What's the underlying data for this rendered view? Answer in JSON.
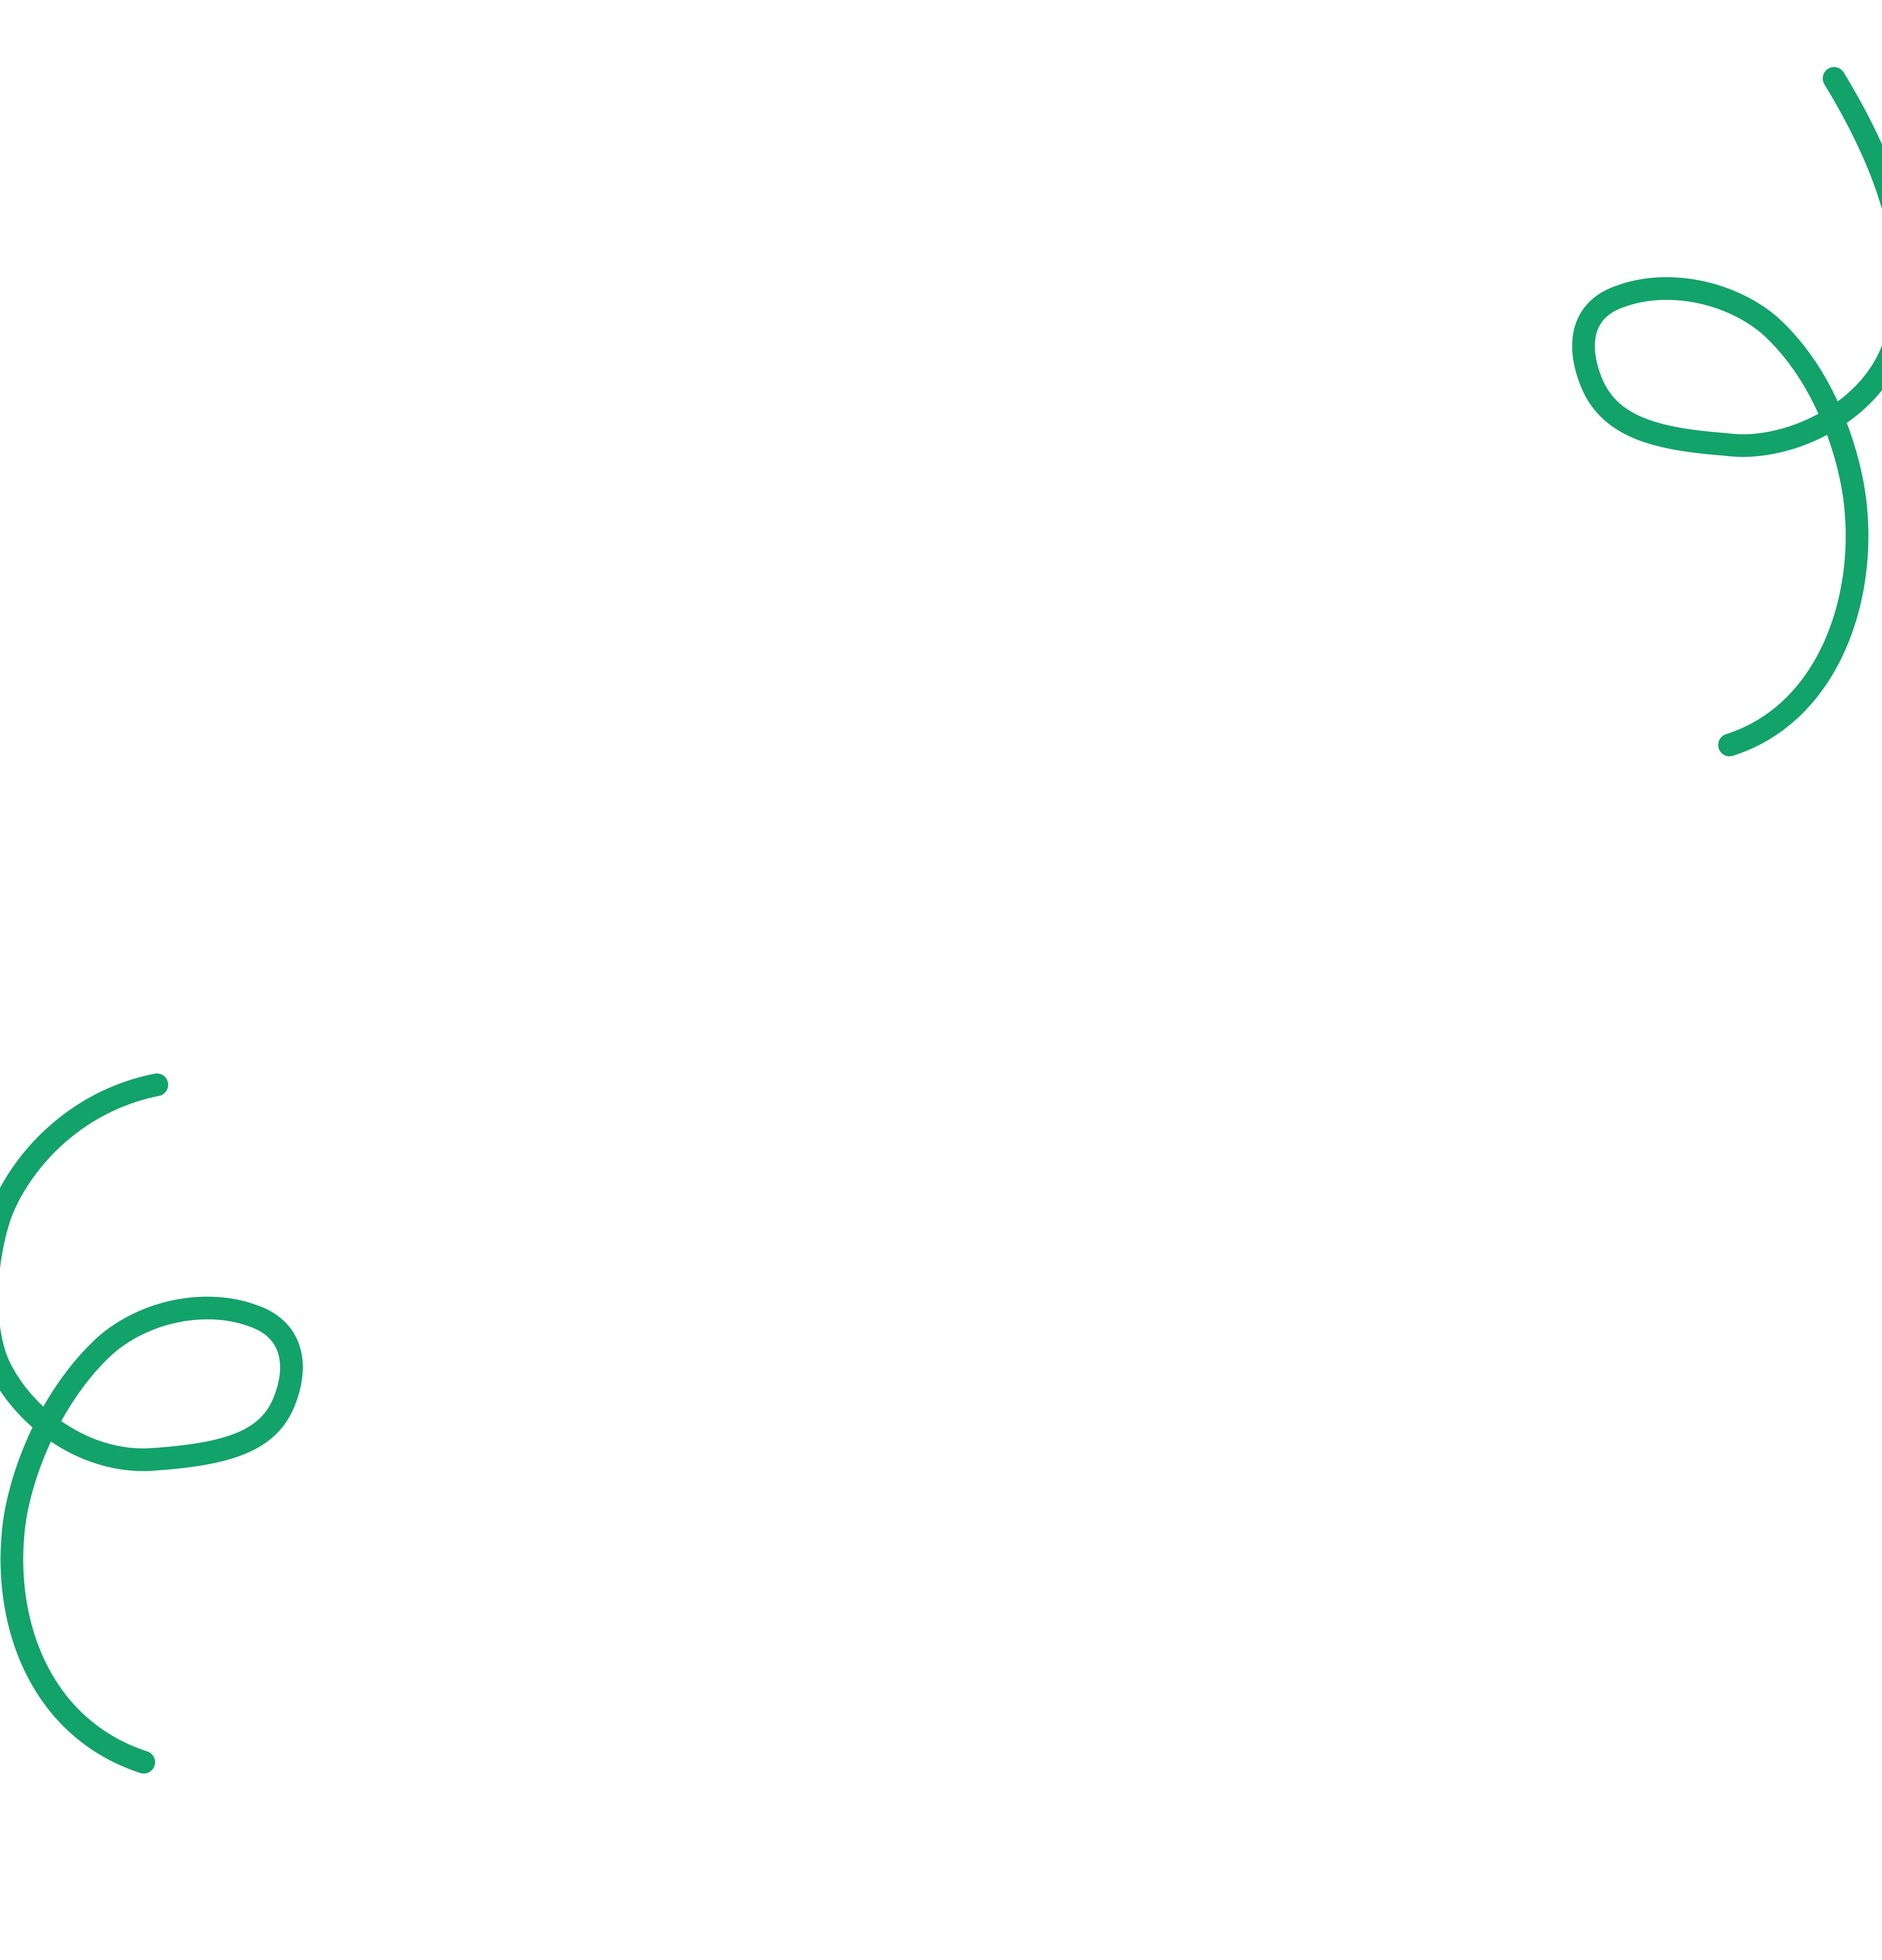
{
  "background_color": "#ffffff",
  "decorations": {
    "stroke_color": "#11a36a",
    "items": [
      {
        "name": "squiggle-top-right-icon",
        "shape": "looped-ribbon"
      },
      {
        "name": "squiggle-bottom-left-icon",
        "shape": "looped-ribbon"
      }
    ]
  }
}
